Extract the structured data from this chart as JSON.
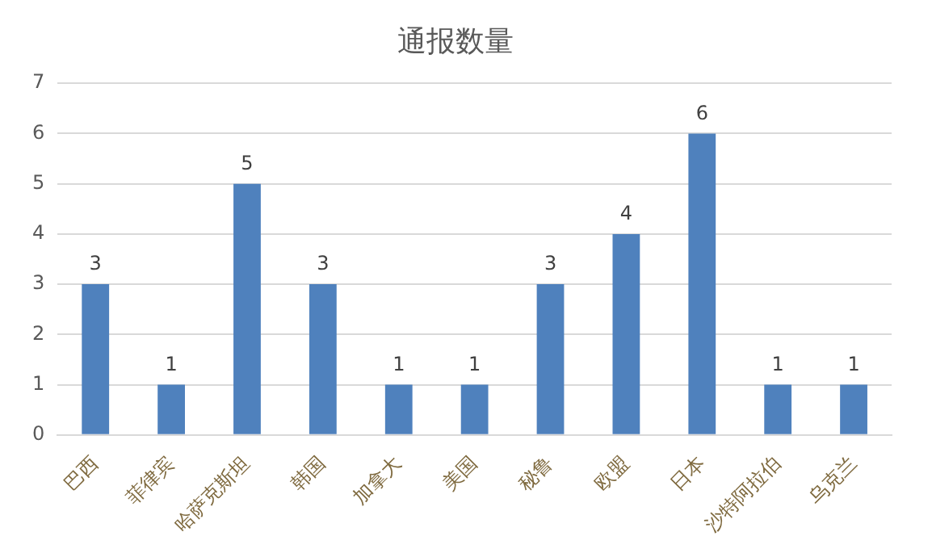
{
  "chart_data": {
    "type": "bar",
    "title": "通报数量",
    "categories": [
      "巴西",
      "菲律宾",
      "哈萨克斯坦",
      "韩国",
      "加拿大",
      "美国",
      "秘鲁",
      "欧盟",
      "日本",
      "沙特阿拉伯",
      "乌克兰"
    ],
    "values": [
      3,
      1,
      5,
      3,
      1,
      1,
      3,
      4,
      6,
      1,
      1
    ],
    "color": "#4f81bd",
    "ylim": [
      0,
      7
    ],
    "yticks": [
      0,
      1,
      2,
      3,
      4,
      5,
      6,
      7
    ],
    "grid": "y",
    "data_labels": true,
    "legend": false
  }
}
